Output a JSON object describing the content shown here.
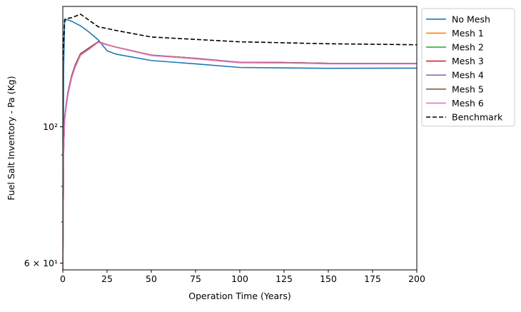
{
  "chart_data": {
    "type": "line",
    "title": "",
    "xlabel": "Operation Time (Years)",
    "ylabel": "Fuel Salt Inventory - Pa (Kg)",
    "xlim": [
      0,
      200
    ],
    "ylim": [
      58.5,
      157
    ],
    "yscale": "log",
    "x_ticks": [
      0,
      25,
      50,
      75,
      100,
      125,
      150,
      175,
      200
    ],
    "x_tick_labels": [
      "0",
      "25",
      "50",
      "75",
      "100",
      "125",
      "150",
      "175",
      "200"
    ],
    "y_ticks": [
      60,
      100
    ],
    "y_tick_labels": [
      "6 × 10¹",
      "10²"
    ],
    "y_minor_ticks": [
      70,
      80,
      90
    ],
    "grid": false,
    "legend_position": "outside-right-top",
    "series": [
      {
        "name": "No Mesh",
        "color": "#1f77b4",
        "style": "solid",
        "x": [
          0,
          0.5,
          1,
          2,
          5,
          10,
          15,
          20,
          25,
          30,
          50,
          75,
          100,
          150,
          200
        ],
        "y": [
          58,
          125,
          148,
          149.5,
          148.5,
          146,
          142.5,
          138.5,
          133,
          131.3,
          128.2,
          126.6,
          124.9,
          124.5,
          124.6
        ]
      },
      {
        "name": "Mesh 1",
        "color": "#ff7f0e",
        "style": "solid",
        "x": [
          0,
          0.5,
          1,
          2,
          3,
          5,
          7,
          10,
          15,
          20,
          25,
          30,
          50,
          75,
          100,
          125,
          150,
          200
        ],
        "y": [
          58,
          92,
          103,
          109,
          114,
          121,
          126,
          131.5,
          134.5,
          137.5,
          136,
          134.8,
          130.8,
          129.2,
          127.3,
          127.2,
          126.8,
          126.8
        ]
      },
      {
        "name": "Mesh 2",
        "color": "#2ca02c",
        "style": "solid",
        "x": [
          0,
          0.5,
          1,
          2,
          3,
          5,
          7,
          10,
          15,
          20,
          25,
          30,
          50,
          75,
          100,
          125,
          150,
          200
        ],
        "y": [
          58,
          92,
          103,
          109,
          114,
          121,
          126,
          131.5,
          134.5,
          137.5,
          136,
          134.8,
          130.8,
          129.2,
          127.3,
          127.2,
          126.8,
          126.8
        ]
      },
      {
        "name": "Mesh 3",
        "color": "#d62728",
        "style": "solid",
        "x": [
          0,
          0.5,
          1,
          2,
          3,
          5,
          7,
          10,
          15,
          20,
          25,
          30,
          50,
          75,
          100,
          125,
          150,
          200
        ],
        "y": [
          58,
          92,
          103,
          109,
          114,
          121,
          126,
          131.5,
          134.5,
          137.5,
          136,
          134.8,
          130.8,
          129.2,
          127.3,
          127.2,
          126.8,
          126.8
        ]
      },
      {
        "name": "Mesh 4",
        "color": "#9467bd",
        "style": "solid",
        "x": [
          0,
          0.5,
          1,
          2,
          3,
          5,
          7,
          10,
          15,
          20,
          25,
          30,
          50,
          75,
          100,
          125,
          150,
          200
        ],
        "y": [
          58,
          92,
          103,
          109,
          114,
          121,
          126,
          131.5,
          134.5,
          137.5,
          136,
          134.8,
          130.8,
          129.2,
          127.3,
          127.2,
          126.8,
          126.8
        ]
      },
      {
        "name": "Mesh 5",
        "color": "#8c564b",
        "style": "solid",
        "x": [
          0,
          0.5,
          1,
          2,
          3,
          5,
          7,
          10,
          15,
          20,
          25,
          30,
          50,
          75,
          100,
          125,
          150,
          200
        ],
        "y": [
          58,
          92,
          103,
          109,
          114,
          121,
          126,
          131.5,
          134.5,
          137.5,
          136,
          134.8,
          130.8,
          129.2,
          127.3,
          127.2,
          126.8,
          126.8
        ]
      },
      {
        "name": "Mesh 6",
        "color": "#e377c2",
        "style": "solid",
        "x": [
          0,
          0.5,
          1,
          2,
          3,
          5,
          7,
          10,
          15,
          20,
          25,
          30,
          50,
          75,
          100,
          125,
          150,
          200
        ],
        "y": [
          58,
          91,
          102,
          108,
          113,
          120,
          125,
          130.7,
          133.8,
          137.2,
          135.9,
          134.7,
          130.6,
          129,
          127.1,
          127,
          126.6,
          126.6
        ]
      },
      {
        "name": "Benchmark",
        "color": "#000000",
        "style": "dashed",
        "x": [
          0,
          1,
          2,
          5,
          10,
          20,
          30,
          50,
          100,
          150,
          200
        ],
        "y": [
          128,
          149.5,
          150,
          150.5,
          152.5,
          145.5,
          143.5,
          140,
          137.5,
          136.5,
          136
        ]
      }
    ]
  }
}
